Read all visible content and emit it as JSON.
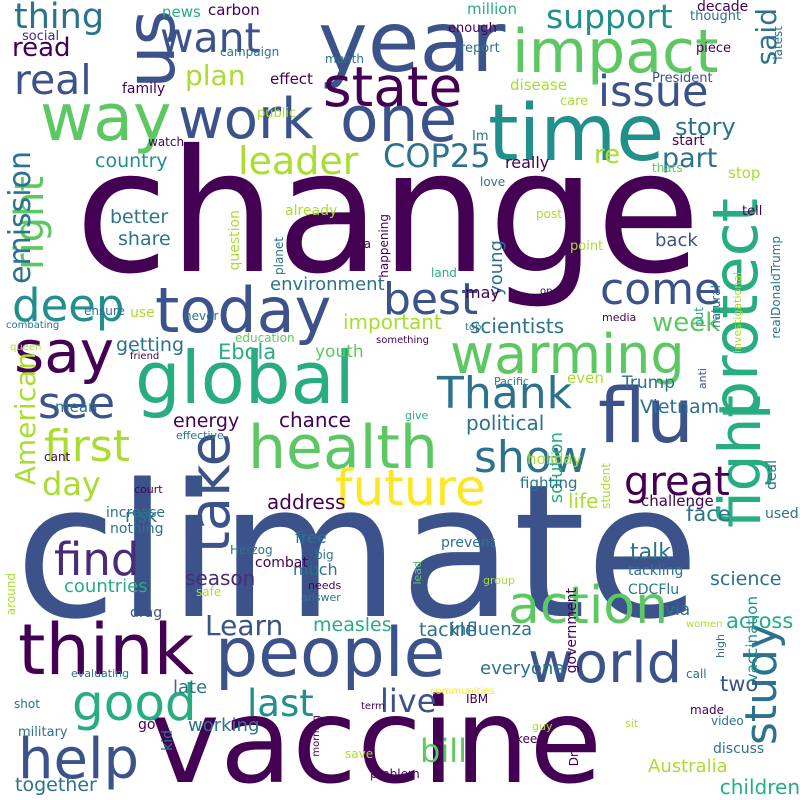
{
  "palette": {
    "purple": "#440154",
    "indigo": "#472c7a",
    "blue": "#3b528b",
    "steel": "#2c728e",
    "teal": "#21908d",
    "jade": "#27ad81",
    "green": "#5dc863",
    "lime": "#aadc32",
    "yellow": "#fde725"
  },
  "words": [
    {
      "text": "change",
      "color": "#440154"
    },
    {
      "text": "climate",
      "color": "#3b528b"
    },
    {
      "text": "vaccine",
      "color": "#440154"
    },
    {
      "text": "year",
      "color": "#3b528b"
    },
    {
      "text": "time",
      "color": "#21908d"
    },
    {
      "text": "impact",
      "color": "#5dc863"
    },
    {
      "text": "us",
      "color": "#3b528b"
    },
    {
      "text": "state",
      "color": "#440154"
    },
    {
      "text": "one",
      "color": "#3b528b"
    },
    {
      "text": "way",
      "color": "#5dc863"
    },
    {
      "text": "work",
      "color": "#3b528b"
    },
    {
      "text": "global",
      "color": "#27ad81"
    },
    {
      "text": "today",
      "color": "#3b528b"
    },
    {
      "text": "people",
      "color": "#3b528b"
    },
    {
      "text": "health",
      "color": "#5dc863"
    },
    {
      "text": "flu",
      "color": "#3b528b"
    },
    {
      "text": "warming",
      "color": "#5dc863"
    },
    {
      "text": "fight",
      "color": "#27ad81"
    },
    {
      "text": "protect",
      "color": "#27ad81"
    },
    {
      "text": "think",
      "color": "#440154"
    },
    {
      "text": "world",
      "color": "#3b528b"
    },
    {
      "text": "action",
      "color": "#5dc863"
    },
    {
      "text": "help",
      "color": "#3b528b"
    },
    {
      "text": "take",
      "color": "#3b528b"
    },
    {
      "text": "future",
      "color": "#fde725"
    },
    {
      "text": "say",
      "color": "#440154"
    },
    {
      "text": "best",
      "color": "#3b528b"
    },
    {
      "text": "deep",
      "color": "#21908d"
    },
    {
      "text": "Thank",
      "color": "#2c728e"
    },
    {
      "text": "first",
      "color": "#aadc32"
    },
    {
      "text": "see",
      "color": "#3b528b"
    },
    {
      "text": "show",
      "color": "#2c728e"
    },
    {
      "text": "good",
      "color": "#27ad81"
    },
    {
      "text": "study",
      "color": "#2c728e"
    },
    {
      "text": "find",
      "color": "#472c7a"
    },
    {
      "text": "come",
      "color": "#3b528b"
    },
    {
      "text": "issue",
      "color": "#3b528b"
    },
    {
      "text": "real",
      "color": "#3b528b"
    },
    {
      "text": "want",
      "color": "#3b528b"
    },
    {
      "text": "great",
      "color": "#440154"
    },
    {
      "text": "right",
      "color": "#5dc863"
    },
    {
      "text": "leader",
      "color": "#aadc32"
    },
    {
      "text": "COP25",
      "color": "#2c728e"
    },
    {
      "text": "support",
      "color": "#21908d"
    },
    {
      "text": "thing",
      "color": "#2c728e"
    },
    {
      "text": "emission",
      "color": "#2c728e"
    },
    {
      "text": "American",
      "color": "#aadc32"
    },
    {
      "text": "day",
      "color": "#aadc32"
    },
    {
      "text": "last",
      "color": "#21908d"
    },
    {
      "text": "live",
      "color": "#3b528b"
    },
    {
      "text": "bill",
      "color": "#5dc863"
    },
    {
      "text": "Learn",
      "color": "#3b528b"
    },
    {
      "text": "plan",
      "color": "#aadc32"
    },
    {
      "text": "said",
      "color": "#2c728e"
    },
    {
      "text": "part",
      "color": "#2c728e"
    },
    {
      "text": "re",
      "color": "#aadc32"
    },
    {
      "text": "week",
      "color": "#5dc863"
    },
    {
      "text": "story",
      "color": "#2c728e"
    },
    {
      "text": "read",
      "color": "#440154"
    },
    {
      "text": "scientists",
      "color": "#2c728e"
    },
    {
      "text": "important",
      "color": "#aadc32"
    },
    {
      "text": "Ebola",
      "color": "#27ad81"
    },
    {
      "text": "Vietnam",
      "color": "#2c728e"
    },
    {
      "text": "Trump",
      "color": "#2c728e"
    },
    {
      "text": "political",
      "color": "#2c728e"
    },
    {
      "text": "address",
      "color": "#440154"
    },
    {
      "text": "chance",
      "color": "#440154"
    },
    {
      "text": "energy",
      "color": "#440154"
    },
    {
      "text": "season",
      "color": "#472c7a"
    },
    {
      "text": "talk",
      "color": "#2c728e"
    },
    {
      "text": "science",
      "color": "#2c728e"
    },
    {
      "text": "across",
      "color": "#27ad81"
    },
    {
      "text": "measles",
      "color": "#27ad81"
    },
    {
      "text": "tackle",
      "color": "#2c728e"
    },
    {
      "text": "life",
      "color": "#aadc32"
    },
    {
      "text": "face",
      "color": "#2c728e"
    },
    {
      "text": "two",
      "color": "#3b528b"
    },
    {
      "text": "children",
      "color": "#27ad81"
    },
    {
      "text": "together",
      "color": "#2c728e"
    },
    {
      "text": "working",
      "color": "#2c728e"
    },
    {
      "text": "late",
      "color": "#2c728e"
    },
    {
      "text": "everyone",
      "color": "#2c728e"
    },
    {
      "text": "influenza",
      "color": "#2c728e"
    },
    {
      "text": "share",
      "color": "#2c728e"
    },
    {
      "text": "better",
      "color": "#2c728e"
    },
    {
      "text": "country",
      "color": "#21908d"
    },
    {
      "text": "getting",
      "color": "#2c728e"
    },
    {
      "text": "environment",
      "color": "#2c728e"
    },
    {
      "text": "young",
      "color": "#2c728e"
    },
    {
      "text": "back",
      "color": "#3b528b"
    },
    {
      "text": "solution",
      "color": "#27ad81"
    },
    {
      "text": "vaccination",
      "color": "#21908d"
    },
    {
      "text": "Australia",
      "color": "#aadc32"
    },
    {
      "text": "countries",
      "color": "#27ad81"
    },
    {
      "text": "much",
      "color": "#2c728e"
    },
    {
      "text": "free",
      "color": "#2c728e"
    },
    {
      "text": "risk",
      "color": "#2c728e"
    },
    {
      "text": "nothing",
      "color": "#2c728e"
    },
    {
      "text": "increase",
      "color": "#2c728e"
    },
    {
      "text": "drag",
      "color": "#3b528b"
    },
    {
      "text": "fighting",
      "color": "#2c728e"
    },
    {
      "text": "challenge",
      "color": "#440154"
    },
    {
      "text": "used",
      "color": "#2c728e"
    },
    {
      "text": "deal",
      "color": "#2c728e"
    },
    {
      "text": "via",
      "color": "#2c728e"
    },
    {
      "text": "tackling",
      "color": "#2c728e"
    },
    {
      "text": "CDCFlu",
      "color": "#2c728e"
    },
    {
      "text": "government",
      "color": "#440154"
    },
    {
      "text": "prevent",
      "color": "#2c728e"
    },
    {
      "text": "combat",
      "color": "#440154"
    },
    {
      "text": "mean",
      "color": "#2c728e"
    },
    {
      "text": "youth",
      "color": "#5dc863"
    },
    {
      "text": "even",
      "color": "#aadc32"
    },
    {
      "text": "holiday",
      "color": "#aadc32"
    },
    {
      "text": "news",
      "color": "#27ad81"
    },
    {
      "text": "carbon",
      "color": "#440154"
    },
    {
      "text": "million",
      "color": "#27ad81"
    },
    {
      "text": "decade",
      "color": "#440154"
    },
    {
      "text": "thought",
      "color": "#2c728e"
    },
    {
      "text": "social",
      "color": "#472c7a"
    },
    {
      "text": "campaign",
      "color": "#2c728e"
    },
    {
      "text": "month",
      "color": "#2c728e"
    },
    {
      "text": "enough",
      "color": "#440154"
    },
    {
      "text": "report",
      "color": "#2c728e"
    },
    {
      "text": "piece",
      "color": "#440154"
    },
    {
      "text": "latest",
      "color": "#2c728e"
    },
    {
      "text": "effect",
      "color": "#440154"
    },
    {
      "text": "family",
      "color": "#440154"
    },
    {
      "text": "care",
      "color": "#aadc32"
    },
    {
      "text": "President",
      "color": "#3b528b"
    },
    {
      "text": "disease",
      "color": "#aadc32"
    },
    {
      "text": "public",
      "color": "#aadc32"
    },
    {
      "text": "watch",
      "color": "#440154"
    },
    {
      "text": "Im",
      "color": "#2c728e"
    },
    {
      "text": "start",
      "color": "#440154"
    },
    {
      "text": "really",
      "color": "#440154"
    },
    {
      "text": "thats",
      "color": "#5dc863"
    },
    {
      "text": "stop",
      "color": "#aadc32"
    },
    {
      "text": "love",
      "color": "#2c728e"
    },
    {
      "text": "tell",
      "color": "#440154"
    },
    {
      "text": "realDonaldTrump",
      "color": "#2c728e"
    },
    {
      "text": "post",
      "color": "#aadc32"
    },
    {
      "text": "already",
      "color": "#aadc32"
    },
    {
      "text": "question",
      "color": "#aadc32"
    },
    {
      "text": "happening",
      "color": "#440154"
    },
    {
      "text": "ga",
      "color": "#440154"
    },
    {
      "text": "planet",
      "color": "#2c728e"
    },
    {
      "text": "natural",
      "color": "#2c728e"
    },
    {
      "text": "point",
      "color": "#aadc32"
    },
    {
      "text": "investigational",
      "color": "#aadc32"
    },
    {
      "text": "land",
      "color": "#27ad81"
    },
    {
      "text": "may",
      "color": "#440154"
    },
    {
      "text": "open",
      "color": "#440154"
    },
    {
      "text": "ensure",
      "color": "#2c728e"
    },
    {
      "text": "never",
      "color": "#2c728e"
    },
    {
      "text": "use",
      "color": "#aadc32"
    },
    {
      "text": "media",
      "color": "#440154"
    },
    {
      "text": "put",
      "color": "#27ad81"
    },
    {
      "text": "top",
      "color": "#2c728e"
    },
    {
      "text": "combating",
      "color": "#2c728e"
    },
    {
      "text": "queen",
      "color": "#aadc32"
    },
    {
      "text": "education",
      "color": "#5dc863"
    },
    {
      "text": "something",
      "color": "#440154"
    },
    {
      "text": "friend",
      "color": "#440154"
    },
    {
      "text": "anti",
      "color": "#3b528b"
    },
    {
      "text": "Pacific",
      "color": "#2c728e"
    },
    {
      "text": "effective",
      "color": "#2c728e"
    },
    {
      "text": "court",
      "color": "#440154"
    },
    {
      "text": "give",
      "color": "#27ad81"
    },
    {
      "text": "cant",
      "color": "#440154"
    },
    {
      "text": "student",
      "color": "#aadc32"
    },
    {
      "text": "Herzog",
      "color": "#2c728e"
    },
    {
      "text": "big",
      "color": "#2c728e"
    },
    {
      "text": "lead",
      "color": "#5dc863"
    },
    {
      "text": "around",
      "color": "#aadc32"
    },
    {
      "text": "safe",
      "color": "#aadc32"
    },
    {
      "text": "needs",
      "color": "#440154"
    },
    {
      "text": "answer",
      "color": "#2c728e"
    },
    {
      "text": "group",
      "color": "#aadc32"
    },
    {
      "text": "women",
      "color": "#aadc32"
    },
    {
      "text": "high",
      "color": "#2c728e"
    },
    {
      "text": "call",
      "color": "#2c728e"
    },
    {
      "text": "made",
      "color": "#440154"
    },
    {
      "text": "shot",
      "color": "#2c728e"
    },
    {
      "text": "evaluating",
      "color": "#2c728e"
    },
    {
      "text": "communities",
      "color": "#fde725"
    },
    {
      "text": "IBM",
      "color": "#440154"
    },
    {
      "text": "term",
      "color": "#440154"
    },
    {
      "text": "video",
      "color": "#2c728e"
    },
    {
      "text": "military",
      "color": "#2c728e"
    },
    {
      "text": "go",
      "color": "#440154"
    },
    {
      "text": "morning",
      "color": "#440154"
    },
    {
      "text": "guy",
      "color": "#aadc32"
    },
    {
      "text": "keep",
      "color": "#440154"
    },
    {
      "text": "sit",
      "color": "#aadc32"
    },
    {
      "text": "discuss",
      "color": "#2c728e"
    },
    {
      "text": "save",
      "color": "#aadc32"
    },
    {
      "text": "problem",
      "color": "#440154"
    },
    {
      "text": "kid",
      "color": "#2c728e"
    },
    {
      "text": "Dr",
      "color": "#440154"
    }
  ]
}
